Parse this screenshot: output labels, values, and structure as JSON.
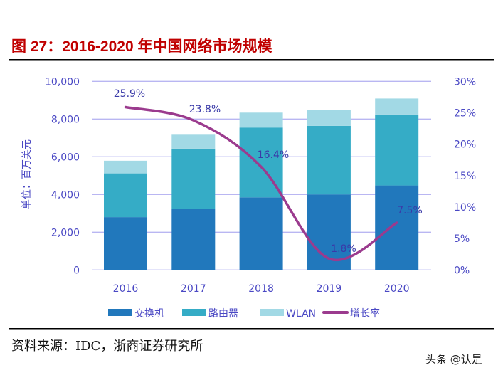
{
  "title": "图 27：2016-2020 年中国网络市场规模",
  "source": "资料来源：IDC，浙商证券研究所",
  "watermark": "头条 @认是",
  "chart_data": {
    "type": "bar",
    "stacked": true,
    "title": "图 27：2016-2020 年中国网络市场规模",
    "ylabel": "单位：百万美元",
    "categories": [
      "2016",
      "2017",
      "2018",
      "2019",
      "2020"
    ],
    "ylim": [
      0,
      10000
    ],
    "yticks": [
      "0",
      "2,000",
      "4,000",
      "6,000",
      "8,000",
      "10,000"
    ],
    "y2lim": [
      0,
      30
    ],
    "y2ticks": [
      "0%",
      "5%",
      "10%",
      "15%",
      "20%",
      "25%",
      "30%"
    ],
    "grid": true,
    "legend_position": "bottom",
    "series": [
      {
        "name": "交换机",
        "type": "bar",
        "color": "#2178BC",
        "values": [
          2800,
          3230,
          3850,
          4000,
          4480
        ]
      },
      {
        "name": "路由器",
        "type": "bar",
        "color": "#35ACC6",
        "values": [
          2320,
          3200,
          3700,
          3640,
          3760
        ]
      },
      {
        "name": "WLAN",
        "type": "bar",
        "color": "#A2D9E5",
        "values": [
          670,
          740,
          790,
          830,
          850
        ]
      },
      {
        "name": "增长率",
        "type": "line",
        "axis": "right",
        "color": "#9B3B8E",
        "values": [
          25.9,
          23.8,
          16.4,
          1.8,
          7.5
        ],
        "labels": [
          "25.9%",
          "23.8%",
          "16.4%",
          "1.8%",
          "7.5%"
        ]
      }
    ]
  }
}
